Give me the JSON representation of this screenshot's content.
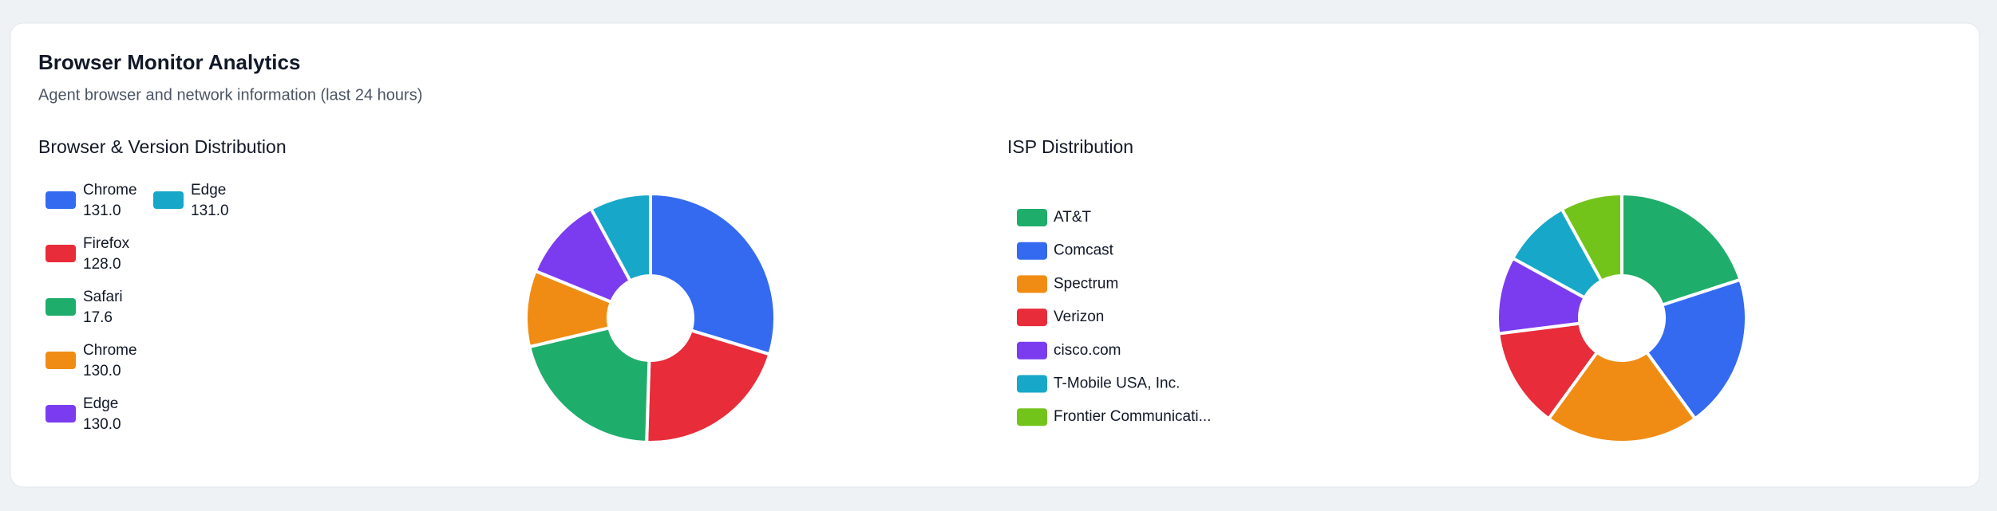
{
  "header": {
    "title": "Browser Monitor Analytics",
    "subtitle": "Agent browser and network information (last 24 hours)"
  },
  "chart_data": [
    {
      "type": "doughnut",
      "title": "Browser & Version Distribution",
      "series": [
        {
          "name": "Chrome",
          "version": "131.0",
          "color": "#336af0",
          "value": 30
        },
        {
          "name": "Firefox",
          "version": "128.0",
          "color": "#e82c3a",
          "value": 21
        },
        {
          "name": "Safari",
          "version": "17.6",
          "color": "#1fad6c",
          "value": 21
        },
        {
          "name": "Chrome",
          "version": "130.0",
          "color": "#f08c14",
          "value": 10
        },
        {
          "name": "Edge",
          "version": "130.0",
          "color": "#7b3cf0",
          "value": 11
        },
        {
          "name": "Edge",
          "version": "131.0",
          "color": "#17a8c9",
          "value": 8
        }
      ]
    },
    {
      "type": "doughnut",
      "title": "ISP Distribution",
      "series": [
        {
          "name": "AT&T",
          "color": "#1fad6c",
          "value": 20
        },
        {
          "name": "Comcast",
          "color": "#336af0",
          "value": 20
        },
        {
          "name": "Spectrum",
          "color": "#f08c14",
          "value": 20
        },
        {
          "name": "Verizon",
          "color": "#e82c3a",
          "value": 13
        },
        {
          "name": "cisco.com",
          "color": "#7b3cf0",
          "value": 10
        },
        {
          "name": "T-Mobile USA, Inc.",
          "color": "#17a8c9",
          "value": 9
        },
        {
          "name": "Frontier Communicati...",
          "color": "#72c31a",
          "value": 8
        }
      ]
    }
  ]
}
